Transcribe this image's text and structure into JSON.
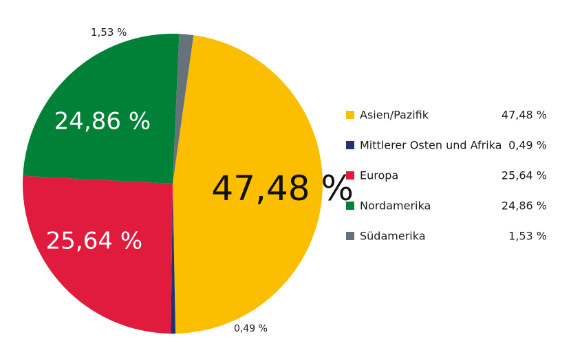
{
  "chart_data": {
    "type": "pie",
    "title": "",
    "slices": [
      {
        "name": "Asien/Pazifik",
        "value": 47.48,
        "label": "47,48 %",
        "legend_value": "47,48 %",
        "color": "#FBBE00",
        "label_color": "#111111"
      },
      {
        "name": "Mittlerer Osten und Afrika",
        "value": 0.49,
        "label": "0,49 %",
        "legend_value": "0,49 %",
        "color": "#1F3273",
        "label_color": "#1a1a1a"
      },
      {
        "name": "Europa",
        "value": 25.64,
        "label": "25,64 %",
        "legend_value": "25,64 %",
        "color": "#E11B3E",
        "label_color": "#ffffff"
      },
      {
        "name": "Nordamerika",
        "value": 24.86,
        "label": "24,86 %",
        "legend_value": "24,86 %",
        "color": "#008138",
        "label_color": "#ffffff"
      },
      {
        "name": "Südamerika",
        "value": 1.53,
        "label": "1,53 %",
        "legend_value": "1,53 %",
        "color": "#66727A",
        "label_color": "#1a1a1a"
      }
    ],
    "start": "clockwise from top, first slice begins slightly right of 12 o'clock",
    "legend_position": "right"
  }
}
